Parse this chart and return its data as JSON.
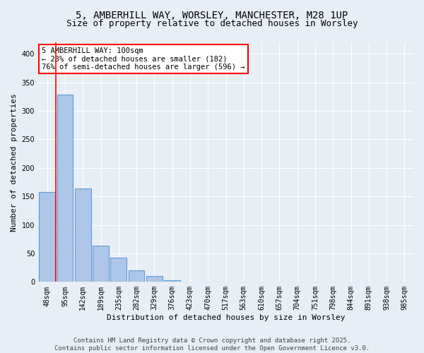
{
  "title_line1": "5, AMBERHILL WAY, WORSLEY, MANCHESTER, M28 1UP",
  "title_line2": "Size of property relative to detached houses in Worsley",
  "xlabel": "Distribution of detached houses by size in Worsley",
  "ylabel": "Number of detached properties",
  "categories": [
    "48sqm",
    "95sqm",
    "142sqm",
    "189sqm",
    "235sqm",
    "282sqm",
    "329sqm",
    "376sqm",
    "423sqm",
    "470sqm",
    "517sqm",
    "563sqm",
    "610sqm",
    "657sqm",
    "704sqm",
    "751sqm",
    "798sqm",
    "844sqm",
    "891sqm",
    "938sqm",
    "985sqm"
  ],
  "values": [
    157,
    328,
    164,
    63,
    42,
    20,
    10,
    3,
    1,
    0,
    0,
    0,
    0,
    0,
    0,
    0,
    0,
    0,
    0,
    0,
    0
  ],
  "bar_color": "#aec6e8",
  "bar_edge_color": "#5b9bd5",
  "background_color": "#e8eef5",
  "grid_color": "#ffffff",
  "annotation_line1": "5 AMBERHILL WAY: 100sqm",
  "annotation_line2": "← 23% of detached houses are smaller (182)",
  "annotation_line3": "76% of semi-detached houses are larger (596) →",
  "annotation_box_color": "#ff0000",
  "redline_x": 0.5,
  "ylim": [
    0,
    420
  ],
  "yticks": [
    0,
    50,
    100,
    150,
    200,
    250,
    300,
    350,
    400
  ],
  "footer_line1": "Contains HM Land Registry data © Crown copyright and database right 2025.",
  "footer_line2": "Contains public sector information licensed under the Open Government Licence v3.0.",
  "title_fontsize": 10,
  "subtitle_fontsize": 9,
  "axis_label_fontsize": 8,
  "tick_fontsize": 7,
  "annotation_fontsize": 7.5,
  "footer_fontsize": 6.5
}
